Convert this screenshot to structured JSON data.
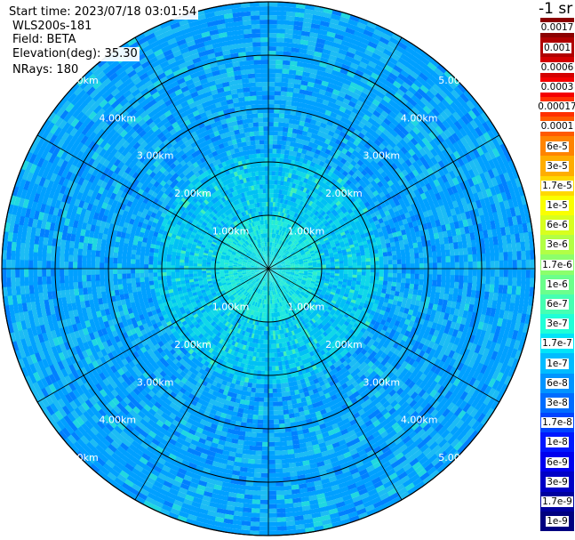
{
  "header": {
    "start_time": "Start time: 2023/07/18 03:01:54",
    "instrument": "WLS200s-181",
    "field": "Field: BETA",
    "elevation": "Elevation(deg): 35.30",
    "nrays": "NRays: 180"
  },
  "colorbar": {
    "unit": "-1 sr",
    "labels": [
      "0.0017",
      "0.001",
      "0.0006",
      "0.0003",
      "0.00017",
      "0.0001",
      "6e-5",
      "3e-5",
      "1.7e-5",
      "1e-5",
      "6e-6",
      "3e-6",
      "1.7e-6",
      "1e-6",
      "6e-7",
      "3e-7",
      "1.7e-7",
      "1e-7",
      "6e-8",
      "3e-8",
      "1.7e-8",
      "1e-8",
      "6e-9",
      "3e-9",
      "1.7e-9",
      "1e-9"
    ],
    "colors": [
      "#8b0000",
      "#b00000",
      "#d40000",
      "#f40000",
      "#ff3000",
      "#ff5a00",
      "#ff8400",
      "#ffad00",
      "#ffd800",
      "#faff00",
      "#d8ff1e",
      "#b2ff45",
      "#8cff6b",
      "#6bff8c",
      "#45ffb2",
      "#1effd8",
      "#00e4f8",
      "#00bcff",
      "#0094ff",
      "#006cff",
      "#0044ff",
      "#0018ff",
      "#0000ee",
      "#0000c6",
      "#00009e",
      "#000080"
    ]
  },
  "chart_data": {
    "type": "heatmap",
    "projection": "polar-ppi",
    "field": "BETA",
    "elevation_deg": 35.3,
    "nrays": 180,
    "range_rings_km": [
      1,
      2,
      3,
      4,
      5
    ],
    "ring_labels": [
      "1.00km",
      "2.00km",
      "3.00km",
      "4.00km",
      "5.00km"
    ],
    "spoke_interval_deg": 30,
    "max_range_km": 5.0,
    "scale": "log",
    "value_range": [
      1e-09,
      0.0017
    ],
    "typical_values": [
      {
        "range_km": [
          0,
          1
        ],
        "value": "3e-7"
      },
      {
        "range_km": [
          1,
          2.5
        ],
        "value": "1e-7"
      },
      {
        "range_km": [
          2.5,
          5
        ],
        "value": "3e-8"
      }
    ]
  }
}
